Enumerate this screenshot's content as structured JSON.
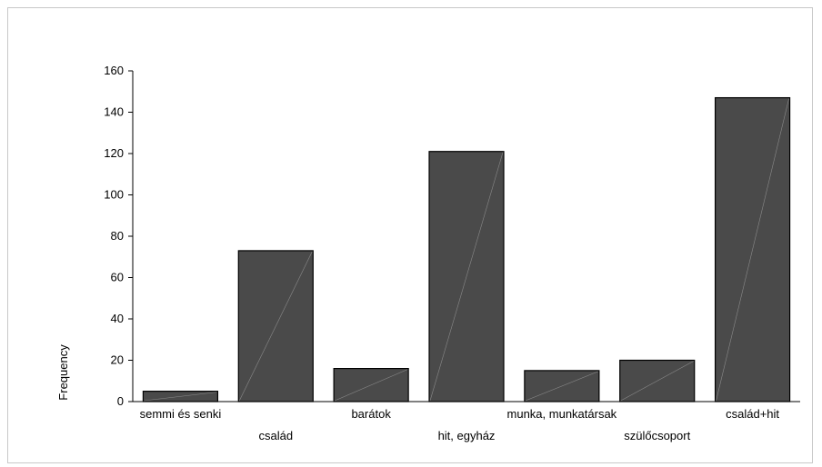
{
  "chart_data": {
    "type": "bar",
    "title": "",
    "xlabel": "",
    "ylabel": "Frequency",
    "ylim": [
      0,
      160
    ],
    "yticks": [
      0,
      20,
      40,
      60,
      80,
      100,
      120,
      140,
      160
    ],
    "categories": [
      "semmi és senki",
      "család",
      "barátok",
      "hit, egyház",
      "munka, munkatársak",
      "szülőcsoport",
      "család+hit"
    ],
    "values": [
      5,
      73,
      16,
      121,
      15,
      20,
      147
    ],
    "grid": false,
    "legend": "none",
    "bar_color": "#4a4a4a"
  }
}
